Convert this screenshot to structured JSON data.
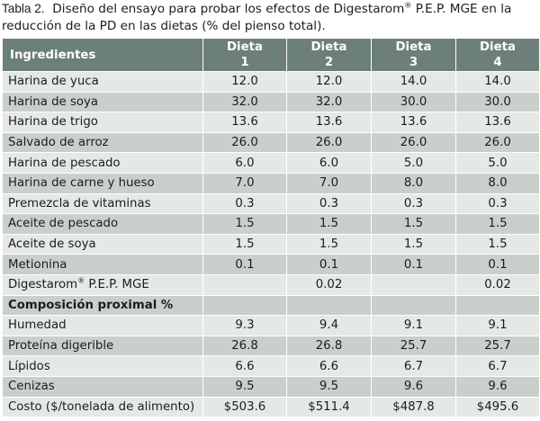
{
  "caption": {
    "label": "Tabla 2.",
    "text": "Diseño del ensayo para probar los efectos de Digestarom® P.E.P. MGE en la reducción de la PD en las dietas (% del pienso total)."
  },
  "table": {
    "header": {
      "ingredients": "Ingredientes",
      "diets": [
        {
          "word": "Dieta",
          "num": "1"
        },
        {
          "word": "Dieta",
          "num": "2"
        },
        {
          "word": "Dieta",
          "num": "3"
        },
        {
          "word": "Dieta",
          "num": "4"
        }
      ]
    },
    "rows": [
      {
        "label": "Harina de yuca",
        "values": [
          "12.0",
          "12.0",
          "14.0",
          "14.0"
        ]
      },
      {
        "label": "Harina de soya",
        "values": [
          "32.0",
          "32.0",
          "30.0",
          "30.0"
        ]
      },
      {
        "label": "Harina de trigo",
        "values": [
          "13.6",
          "13.6",
          "13.6",
          "13.6"
        ]
      },
      {
        "label": "Salvado de arroz",
        "values": [
          "26.0",
          "26.0",
          "26.0",
          "26.0"
        ]
      },
      {
        "label": "Harina de pescado",
        "values": [
          "6.0",
          "6.0",
          "5.0",
          "5.0"
        ]
      },
      {
        "label": "Harina de carne y hueso",
        "values": [
          "7.0",
          "7.0",
          "8.0",
          "8.0"
        ]
      },
      {
        "label": "Premezcla de vitaminas",
        "values": [
          "0.3",
          "0.3",
          "0.3",
          "0.3"
        ]
      },
      {
        "label": "Aceite de pescado",
        "values": [
          "1.5",
          "1.5",
          "1.5",
          "1.5"
        ]
      },
      {
        "label": "Aceite de soya",
        "values": [
          "1.5",
          "1.5",
          "1.5",
          "1.5"
        ]
      },
      {
        "label": "Metionina",
        "values": [
          "0.1",
          "0.1",
          "0.1",
          "0.1"
        ]
      },
      {
        "label": "Digestarom® P.E.P. MGE",
        "values": [
          "",
          "0.02",
          "",
          "0.02"
        ]
      }
    ],
    "section_title": "Composición proximal %",
    "composition_rows": [
      {
        "label": "Humedad",
        "values": [
          "9.3",
          "9.4",
          "9.1",
          "9.1"
        ]
      },
      {
        "label": "Proteína digerible",
        "values": [
          "26.8",
          "26.8",
          "25.7",
          "25.7"
        ]
      },
      {
        "label": "Lípidos",
        "values": [
          "6.6",
          "6.6",
          "6.7",
          "6.7"
        ]
      },
      {
        "label": "Cenizas",
        "values": [
          "9.5",
          "9.5",
          "9.6",
          "9.6"
        ]
      },
      {
        "label": "Costo ($/tonelada de alimento)",
        "values": [
          "$503.6",
          "$511.4",
          "$487.8",
          "$495.6"
        ]
      }
    ]
  }
}
